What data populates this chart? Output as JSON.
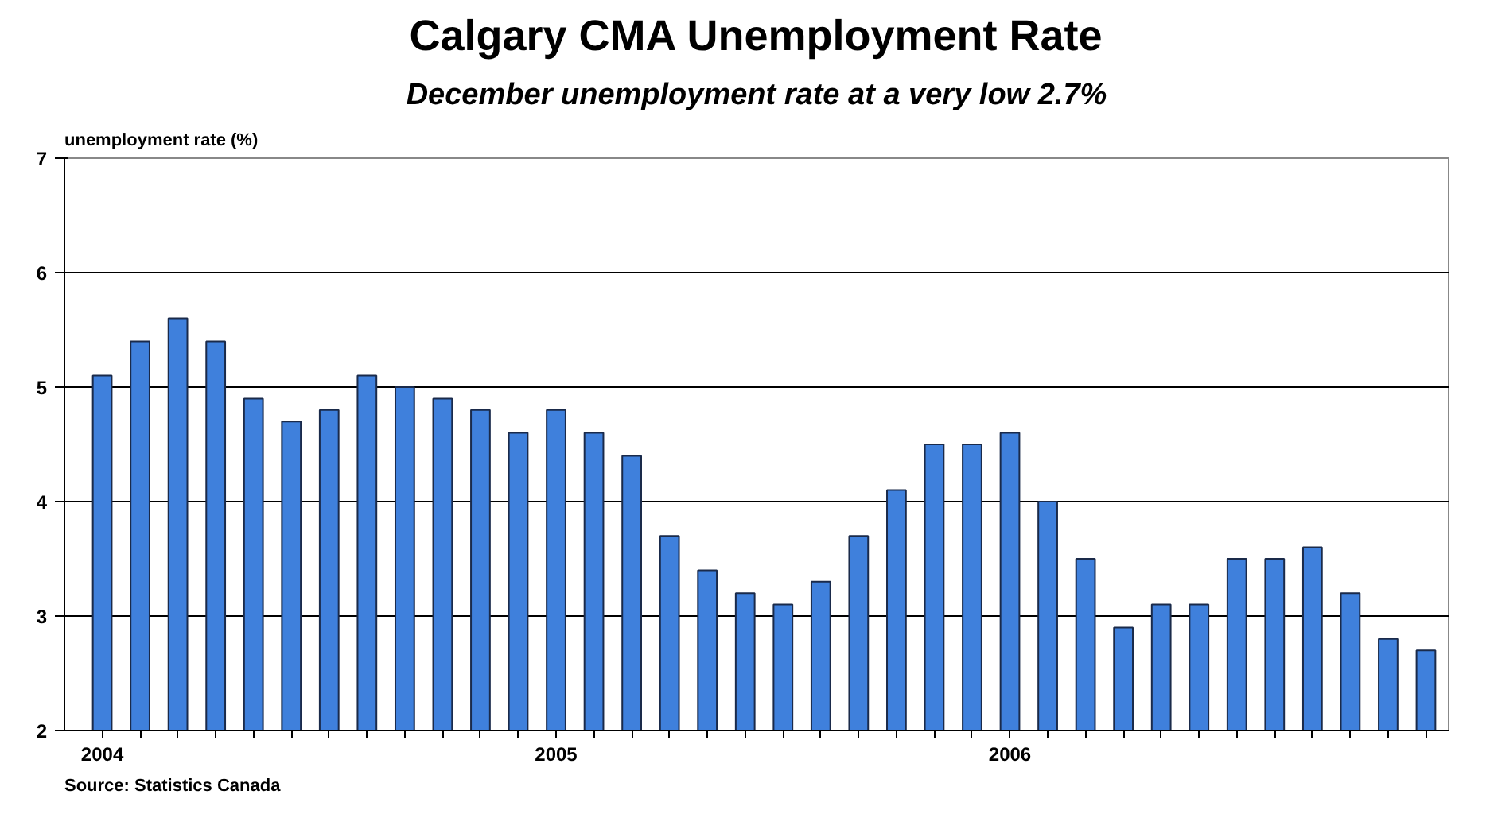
{
  "chart_data": {
    "type": "bar",
    "title": "Calgary CMA Unemployment Rate",
    "subtitle": "December unemployment rate at a very low 2.7%",
    "ylabel": "unemployment rate (%)",
    "annotations": [
      "Source:  Statistics Canada"
    ],
    "categories": [
      "2004",
      null,
      null,
      null,
      null,
      null,
      null,
      null,
      null,
      null,
      null,
      null,
      "2005",
      null,
      null,
      null,
      null,
      null,
      null,
      null,
      null,
      null,
      null,
      null,
      "2006",
      null,
      null,
      null,
      null,
      null,
      null,
      null,
      null,
      null,
      null,
      null
    ],
    "values": [
      5.1,
      5.4,
      5.6,
      5.4,
      4.9,
      4.7,
      4.8,
      5.1,
      5.0,
      4.9,
      4.8,
      4.6,
      4.8,
      4.6,
      4.4,
      3.7,
      3.4,
      3.2,
      3.1,
      3.3,
      3.7,
      4.1,
      4.5,
      4.5,
      4.6,
      4.0,
      3.5,
      2.9,
      3.1,
      3.1,
      3.5,
      3.5,
      3.6,
      3.2,
      2.8,
      2.7
    ],
    "color": "#3f80dc",
    "ylim": [
      2,
      7
    ],
    "yticks": [
      2,
      3,
      4,
      5,
      6,
      7
    ],
    "grid": "y"
  }
}
